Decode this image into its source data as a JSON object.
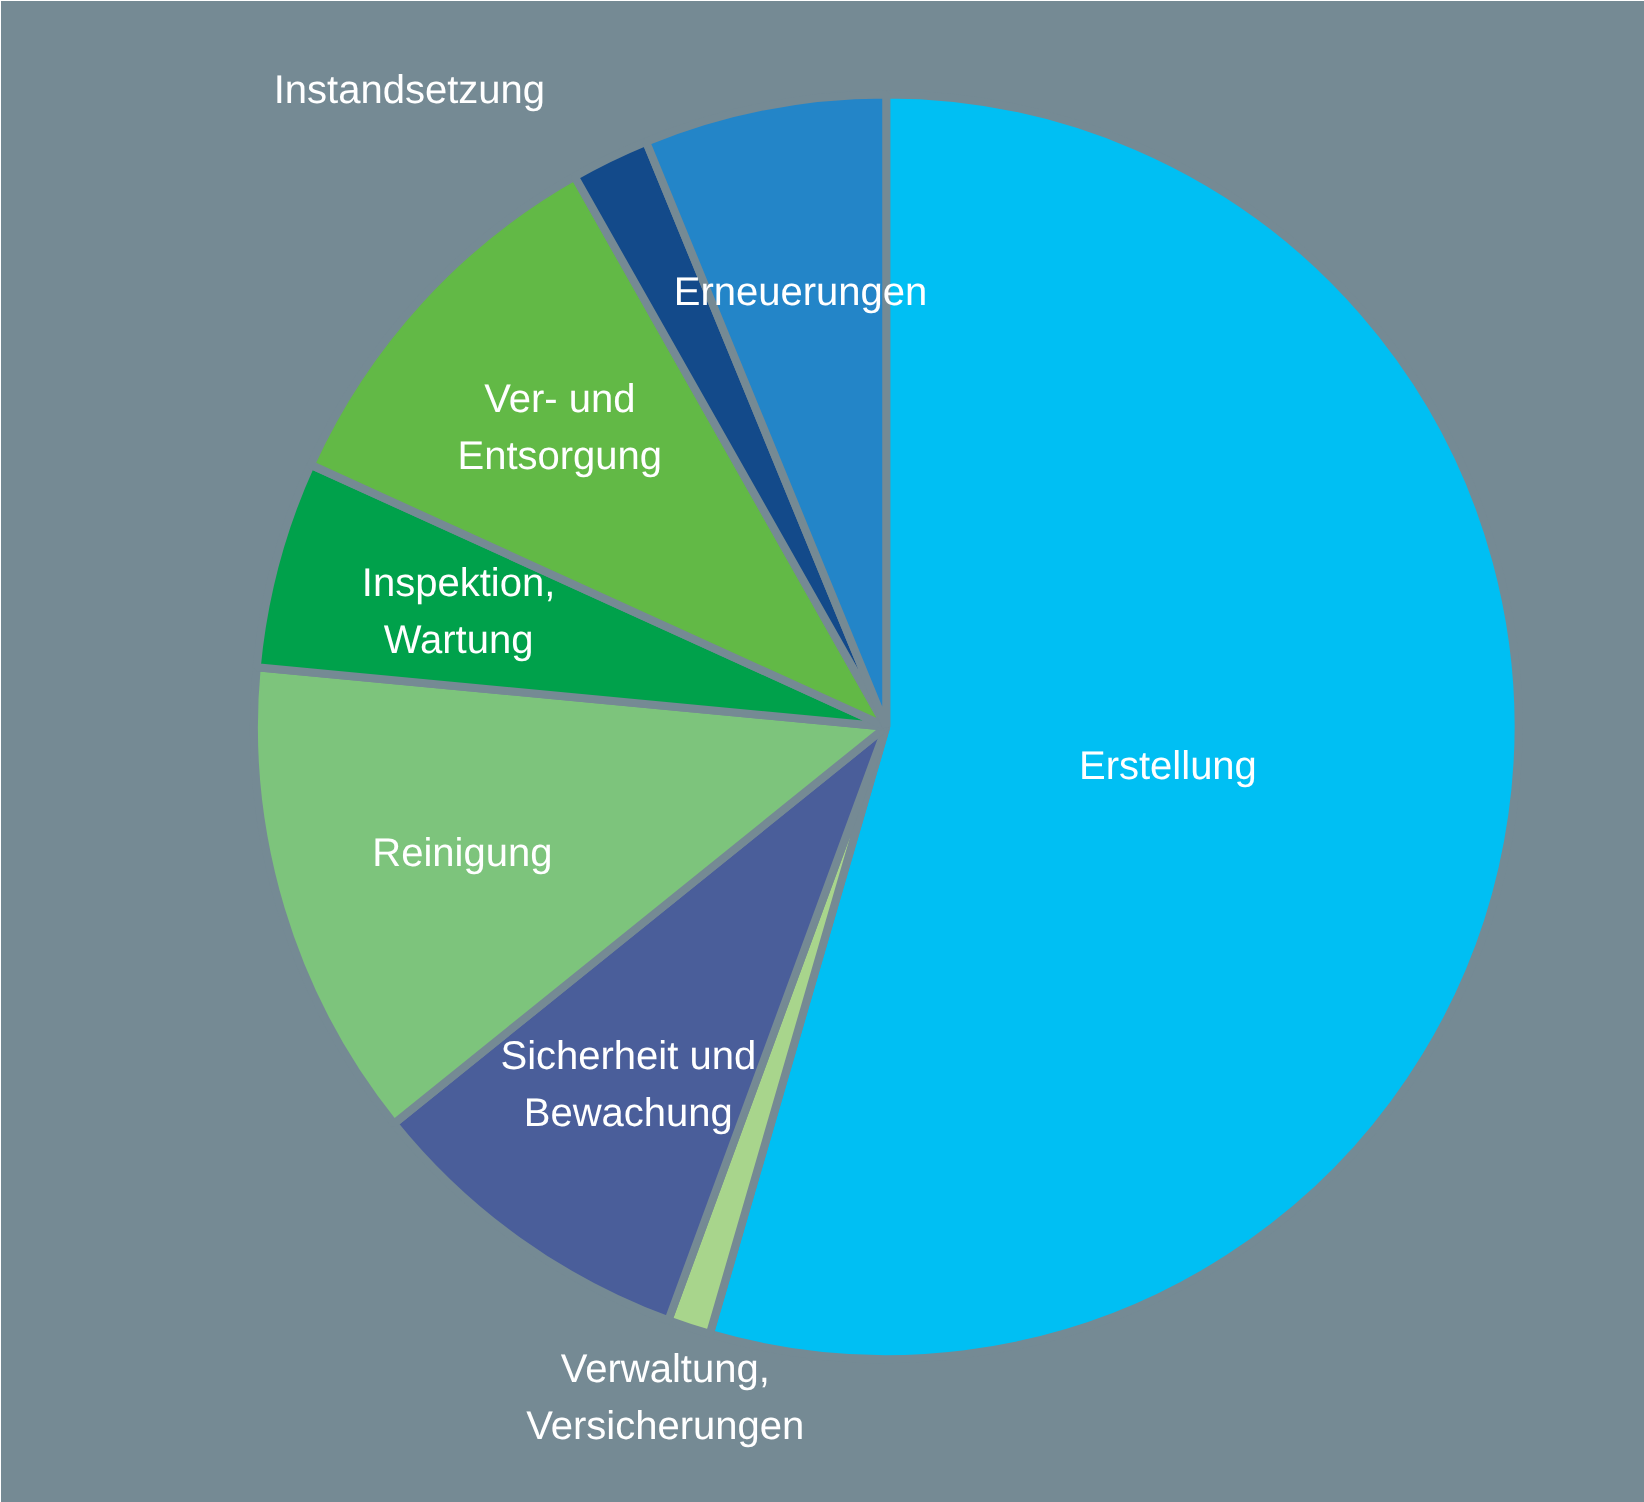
{
  "chart_data": {
    "type": "pie",
    "categories": [
      "Erstellung",
      "Verwaltung, Versicherungen",
      "Sicherheit und Bewachung",
      "Reinigung",
      "Inspektion, Wartung",
      "Ver- und Entsorgung",
      "Instandsetzung",
      "Erneuerungen"
    ],
    "values": [
      54.5,
      1.1,
      8.6,
      12.3,
      5.3,
      10,
      2,
      6.2
    ],
    "colors": [
      "#00bff3",
      "#a8d58c",
      "#4a5e9a",
      "#7dc47c",
      "#00a14b",
      "#62b946",
      "#134a8a",
      "#2385c8"
    ]
  }
}
